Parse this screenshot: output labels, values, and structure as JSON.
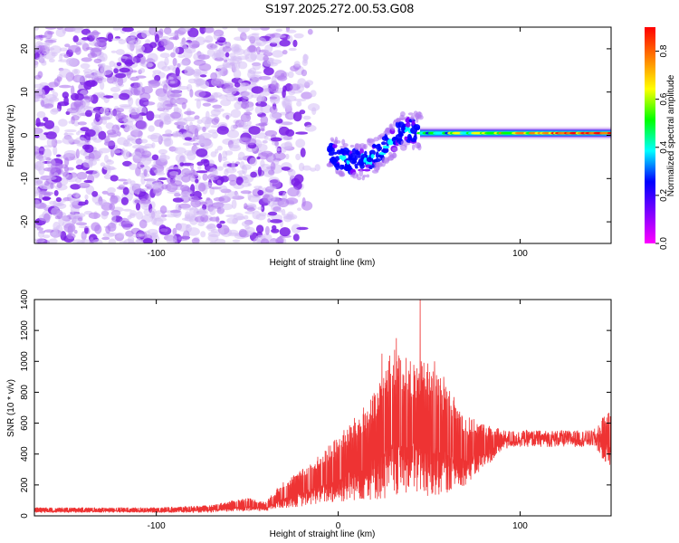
{
  "title": "S197.2025.272.00.53.G08",
  "chart_data": [
    {
      "type": "heatmap",
      "name": "spectrogram",
      "xlabel": "Height of straight line (km)",
      "ylabel": "Frequency (Hz)",
      "xlim": [
        -167,
        150
      ],
      "ylim": [
        -25,
        25
      ],
      "xticks": [
        -100,
        0,
        100
      ],
      "yticks": [
        -20,
        -10,
        0,
        10,
        20
      ],
      "colorbar": {
        "label": "Normalized spectral amplitude",
        "range": [
          0.0,
          0.9
        ],
        "ticks": [
          0.0,
          0.2,
          0.4,
          0.6,
          0.8
        ],
        "tick_labels": [
          "0.0",
          "0.2",
          "0.4",
          "0.6",
          "0.8"
        ],
        "colormap": [
          "#ff0000",
          "#ff7f00",
          "#ffff00",
          "#00ff00",
          "#00ffff",
          "#0000ff",
          "#7f00ff",
          "#ff00ff"
        ]
      },
      "regions": [
        {
          "description": "scattered noise",
          "x_range": [
            -167,
            -10
          ],
          "f_range": [
            -25,
            25
          ],
          "amplitude": [
            0.02,
            0.12
          ]
        },
        {
          "description": "signal onset",
          "x_range": [
            -5,
            45
          ],
          "track_hz": [
            [
              -5,
              -4
            ],
            [
              5,
              -6
            ],
            [
              15,
              -6
            ],
            [
              25,
              -3
            ],
            [
              35,
              1
            ],
            [
              45,
              1
            ]
          ],
          "amplitude": [
            0.2,
            0.5
          ]
        },
        {
          "description": "steady carrier",
          "x_range": [
            45,
            150
          ],
          "track_hz": [
            [
              45,
              0.5
            ],
            [
              150,
              0.5
            ]
          ],
          "amplitude": [
            0.3,
            0.9
          ]
        }
      ]
    },
    {
      "type": "line",
      "name": "snr",
      "xlabel": "Height of straight line (km)",
      "ylabel": "SNR (10 * v/v)",
      "xlim": [
        -167,
        150
      ],
      "ylim": [
        0,
        1400
      ],
      "xticks": [
        -100,
        0,
        100
      ],
      "yticks": [
        0,
        200,
        400,
        600,
        800,
        1000,
        1200,
        1400
      ],
      "color": "#ee3333",
      "envelope": [
        {
          "x": -167,
          "lo": 20,
          "hi": 55
        },
        {
          "x": -100,
          "lo": 20,
          "hi": 55
        },
        {
          "x": -70,
          "lo": 20,
          "hi": 70
        },
        {
          "x": -50,
          "lo": 30,
          "hi": 120
        },
        {
          "x": -40,
          "lo": 30,
          "hi": 90
        },
        {
          "x": -30,
          "lo": 50,
          "hi": 230
        },
        {
          "x": -20,
          "lo": 60,
          "hi": 300
        },
        {
          "x": -10,
          "lo": 80,
          "hi": 400
        },
        {
          "x": 0,
          "lo": 80,
          "hi": 520
        },
        {
          "x": 10,
          "lo": 100,
          "hi": 650
        },
        {
          "x": 20,
          "lo": 100,
          "hi": 800
        },
        {
          "x": 30,
          "lo": 100,
          "hi": 1100
        },
        {
          "x": 40,
          "lo": 150,
          "hi": 1000
        },
        {
          "x": 50,
          "lo": 100,
          "hi": 1000
        },
        {
          "x": 60,
          "lo": 150,
          "hi": 850
        },
        {
          "x": 70,
          "lo": 200,
          "hi": 650
        },
        {
          "x": 80,
          "lo": 300,
          "hi": 600
        },
        {
          "x": 90,
          "lo": 420,
          "hi": 560
        },
        {
          "x": 100,
          "lo": 440,
          "hi": 560
        },
        {
          "x": 140,
          "lo": 440,
          "hi": 560
        },
        {
          "x": 150,
          "lo": 300,
          "hi": 700
        }
      ],
      "peaks": [
        {
          "x": 24,
          "y": 1050
        },
        {
          "x": 32,
          "y": 1150
        },
        {
          "x": 45,
          "y": 1420
        },
        {
          "x": 53,
          "y": 1000
        },
        {
          "x": 58,
          "y": 900
        }
      ]
    }
  ]
}
